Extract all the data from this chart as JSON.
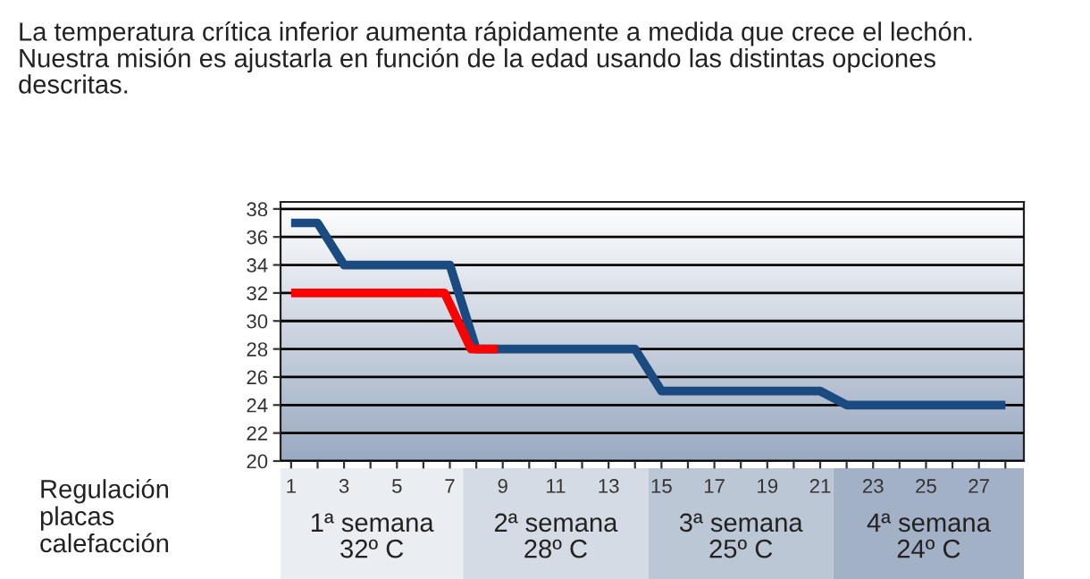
{
  "chart_data": {
    "type": "line",
    "title": "La temperatura crítica inferior aumenta rápidamente a medida que crece el lechón.\nNuestra misión es ajustarla en función de la edad usando las distintas opciones\ndescritas.",
    "series": [
      {
        "color": "#1b4a80",
        "x": [
          1,
          2,
          3,
          7,
          8,
          14,
          15,
          21,
          22,
          28
        ],
        "values": [
          37,
          37,
          34,
          34,
          28,
          28,
          25,
          25,
          24,
          24
        ]
      },
      {
        "color": "#ff0000",
        "x": [
          1,
          6.8,
          7.8,
          8.8
        ],
        "values": [
          32,
          32,
          28,
          28
        ]
      }
    ],
    "xlim": [
      0.6,
      28.7
    ],
    "xticks": [
      1,
      {
        "value": 2,
        "label": null
      },
      3,
      {
        "value": 4,
        "label": null
      },
      5,
      {
        "value": 6,
        "label": null
      },
      7,
      {
        "value": 8,
        "label": null
      },
      9,
      {
        "value": 10,
        "label": null
      },
      11,
      {
        "value": 12,
        "label": null
      },
      13,
      {
        "value": 14,
        "label": null
      },
      15,
      {
        "value": 16,
        "label": null
      },
      17,
      {
        "value": 18,
        "label": null
      },
      19,
      {
        "value": 20,
        "label": null
      },
      21,
      {
        "value": 22,
        "label": null
      },
      23,
      {
        "value": 24,
        "label": null
      },
      25,
      {
        "value": 26,
        "label": null
      },
      27,
      {
        "value": 28,
        "label": null
      }
    ],
    "ylim": [
      20,
      38.5
    ],
    "yticks": [
      20,
      22,
      24,
      26,
      28,
      30,
      32,
      34,
      36,
      38
    ],
    "grid": "y",
    "line_style": "solid",
    "marker": "none",
    "annotations": [
      "Regulación\nplacas\ncalefacción",
      "1ª semana\n32º C",
      "2ª semana\n28º C",
      "3ª semana\n25º C",
      "4ª semana\n24º C"
    ]
  }
}
